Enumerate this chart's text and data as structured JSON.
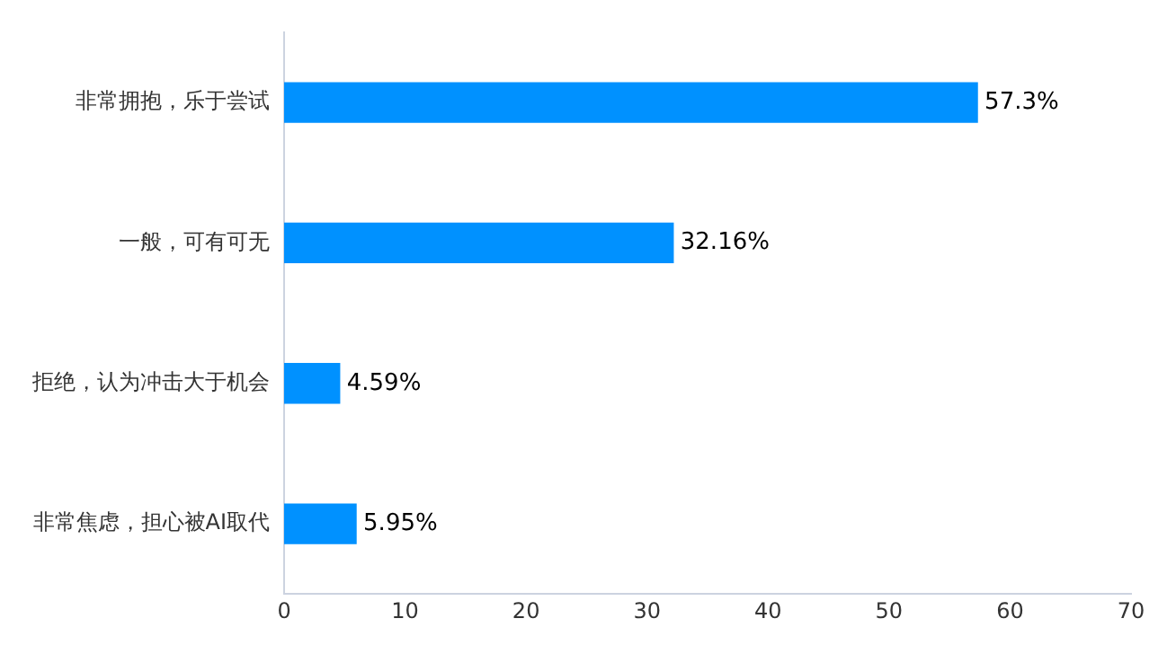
{
  "chart_data": {
    "type": "bar",
    "orientation": "horizontal",
    "categories": [
      "非常拥抱，乐于尝试",
      "一般，可有可无",
      "拒绝，认为冲击大于机会",
      "非常焦虑，担心被AI取代"
    ],
    "values": [
      57.3,
      32.16,
      4.59,
      5.95
    ],
    "value_labels": [
      "57.3%",
      "32.16%",
      "4.59%",
      "5.95%"
    ],
    "color": "#0091ff",
    "xlim": [
      0,
      70
    ],
    "xticks": [
      0,
      10,
      20,
      30,
      40,
      50,
      60,
      70
    ],
    "grid": false,
    "legend": false
  }
}
